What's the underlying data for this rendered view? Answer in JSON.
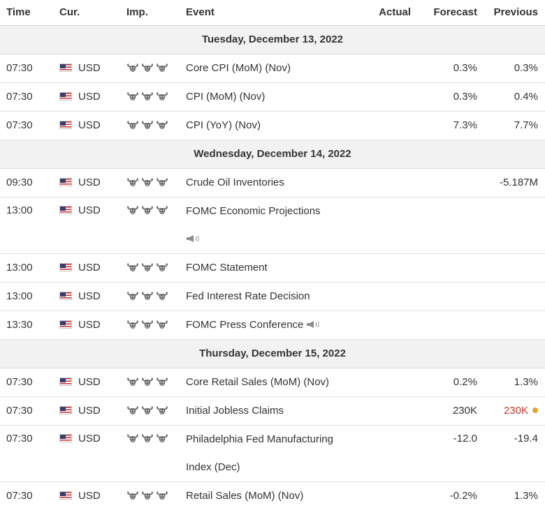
{
  "headers": {
    "time": "Time",
    "currency": "Cur.",
    "importance": "Imp.",
    "event": "Event",
    "actual": "Actual",
    "forecast": "Forecast",
    "previous": "Previous"
  },
  "days": [
    {
      "date": "Tuesday, December 13, 2022",
      "events": [
        {
          "time": "07:30",
          "currency": "USD",
          "flag_icon": "us-flag-icon",
          "importance": 3,
          "event": "Core CPI (MoM) (Nov)",
          "event_line2": "",
          "speech": false,
          "actual": "",
          "forecast": "0.3%",
          "previous": "0.3%",
          "previous_worse": false
        },
        {
          "time": "07:30",
          "currency": "USD",
          "flag_icon": "us-flag-icon",
          "importance": 3,
          "event": "CPI (MoM) (Nov)",
          "event_line2": "",
          "speech": false,
          "actual": "",
          "forecast": "0.3%",
          "previous": "0.4%",
          "previous_worse": false
        },
        {
          "time": "07:30",
          "currency": "USD",
          "flag_icon": "us-flag-icon",
          "importance": 3,
          "event": "CPI (YoY) (Nov)",
          "event_line2": "",
          "speech": false,
          "actual": "",
          "forecast": "7.3%",
          "previous": "7.7%",
          "previous_worse": false
        }
      ]
    },
    {
      "date": "Wednesday, December 14, 2022",
      "events": [
        {
          "time": "09:30",
          "currency": "USD",
          "flag_icon": "us-flag-icon",
          "importance": 3,
          "event": "Crude Oil Inventories",
          "event_line2": "",
          "speech": false,
          "actual": "",
          "forecast": "",
          "previous": "-5.187M",
          "previous_worse": false
        },
        {
          "time": "13:00",
          "currency": "USD",
          "flag_icon": "us-flag-icon",
          "importance": 3,
          "event": "FOMC Economic Projections",
          "event_line2": "",
          "speech": true,
          "speech_on_new_line": true,
          "actual": "",
          "forecast": "",
          "previous": "",
          "previous_worse": false
        },
        {
          "time": "13:00",
          "currency": "USD",
          "flag_icon": "us-flag-icon",
          "importance": 3,
          "event": "FOMC Statement",
          "event_line2": "",
          "speech": false,
          "actual": "",
          "forecast": "",
          "previous": "",
          "previous_worse": false
        },
        {
          "time": "13:00",
          "currency": "USD",
          "flag_icon": "us-flag-icon",
          "importance": 3,
          "event": "Fed Interest Rate Decision",
          "event_line2": "",
          "speech": false,
          "actual": "",
          "forecast": "",
          "previous": "",
          "previous_worse": false
        },
        {
          "time": "13:30",
          "currency": "USD",
          "flag_icon": "us-flag-icon",
          "importance": 3,
          "event": "FOMC Press Conference",
          "event_line2": "",
          "speech": true,
          "speech_on_new_line": false,
          "actual": "",
          "forecast": "",
          "previous": "",
          "previous_worse": false
        }
      ]
    },
    {
      "date": "Thursday, December 15, 2022",
      "events": [
        {
          "time": "07:30",
          "currency": "USD",
          "flag_icon": "us-flag-icon",
          "importance": 3,
          "event": "Core Retail Sales (MoM) (Nov)",
          "event_line2": "",
          "speech": false,
          "actual": "",
          "forecast": "0.2%",
          "previous": "1.3%",
          "previous_worse": false
        },
        {
          "time": "07:30",
          "currency": "USD",
          "flag_icon": "us-flag-icon",
          "importance": 3,
          "event": "Initial Jobless Claims",
          "event_line2": "",
          "speech": false,
          "actual": "",
          "forecast": "230K",
          "previous": "230K",
          "previous_worse": true
        },
        {
          "time": "07:30",
          "currency": "USD",
          "flag_icon": "us-flag-icon",
          "importance": 3,
          "event": "Philadelphia Fed Manufacturing",
          "event_line2": "Index (Dec)",
          "speech": false,
          "actual": "",
          "forecast": "-12.0",
          "previous": "-19.4",
          "previous_worse": false
        },
        {
          "time": "07:30",
          "currency": "USD",
          "flag_icon": "us-flag-icon",
          "importance": 3,
          "event": "Retail Sales (MoM) (Nov)",
          "event_line2": "",
          "speech": false,
          "actual": "",
          "forecast": "-0.2%",
          "previous": "1.3%",
          "previous_worse": false
        }
      ]
    }
  ],
  "colors": {
    "day_header_bg": "#f2f2f2",
    "revised_previous": "#c0392b",
    "revision_dot": "#e8a330",
    "bull_icon": "#6f6f6f"
  }
}
